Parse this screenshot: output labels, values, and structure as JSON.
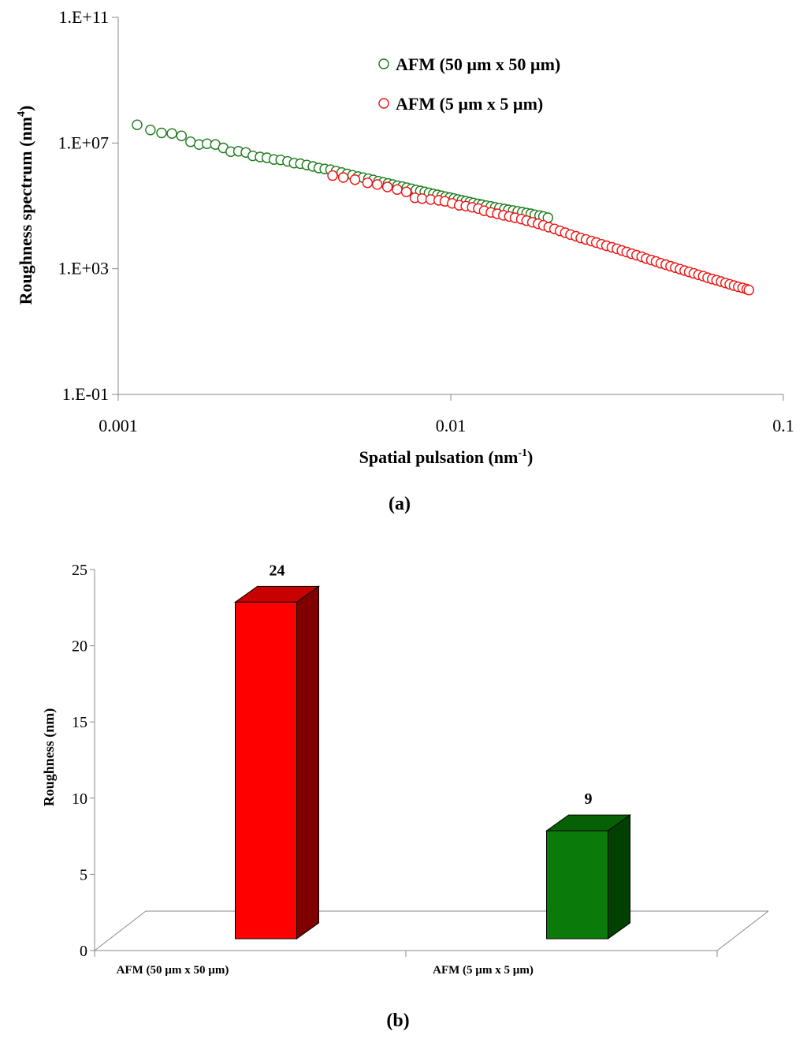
{
  "chart_data": [
    {
      "type": "scatter",
      "panel_label": "(a)",
      "xlabel": "Spatial pulsation (nm",
      "xlabel_sup": "-1",
      "xlabel_tail": ")",
      "ylabel": "Roughness spectrum (nm",
      "ylabel_sup": "4",
      "ylabel_tail": ")",
      "x_scale": "log",
      "y_scale": "log",
      "xlim": [
        0.001,
        0.1
      ],
      "ylim": [
        0.1,
        100000000000
      ],
      "x_ticks": [
        {
          "value": 0.001,
          "label": "0.001"
        },
        {
          "value": 0.01,
          "label": "0.01"
        },
        {
          "value": 0.1,
          "label": "0.1"
        }
      ],
      "y_ticks": [
        {
          "value": 0.1,
          "label": "1.E-01"
        },
        {
          "value": 1000,
          "label": "1.E+03"
        },
        {
          "value": 10000000,
          "label": "1.E+07"
        },
        {
          "value": 100000000000,
          "label": "1.E+11"
        }
      ],
      "grid": false,
      "legend_position": "top-right",
      "series": [
        {
          "name": "AFM (50 µm x 50 µm)",
          "color": "#1a7a1a",
          "marker": "open-circle",
          "x": [
            0.00114,
            0.00125,
            0.00135,
            0.00145,
            0.00155,
            0.00165,
            0.00175,
            0.00185,
            0.00196,
            0.00207,
            0.00218,
            0.0023,
            0.00242,
            0.00254,
            0.00267,
            0.0028,
            0.00294,
            0.00308,
            0.00323,
            0.00338,
            0.00353,
            0.00369,
            0.00385,
            0.00401,
            0.00418,
            0.00435,
            0.00452,
            0.0047,
            0.00488,
            0.00507,
            0.00526,
            0.00545,
            0.00565,
            0.00585,
            0.00606,
            0.00627,
            0.00648,
            0.0067,
            0.00692,
            0.00715,
            0.00738,
            0.00762,
            0.00786,
            0.0081,
            0.00835,
            0.0086,
            0.00886,
            0.00912,
            0.00939,
            0.00966,
            0.00994,
            0.01022,
            0.01051,
            0.0108,
            0.0111,
            0.0114,
            0.0117,
            0.0121,
            0.0124,
            0.0128,
            0.0132,
            0.0136,
            0.014,
            0.0145,
            0.0149,
            0.0154,
            0.0159,
            0.0164,
            0.0169,
            0.0174,
            0.0179,
            0.0185,
            0.019,
            0.0196
          ],
          "y": [
            38000000,
            26000000,
            21000000,
            20000000,
            17000000,
            11000000,
            9000000,
            9500000,
            9000000,
            7000000,
            5300000,
            5500000,
            5000000,
            3900000,
            3600000,
            3400000,
            3000000,
            2900000,
            2600000,
            2300000,
            2200000,
            2000000,
            1800000,
            1600000,
            1500000,
            1420000,
            1280000,
            1150000,
            1040000,
            940000,
            860000,
            790000,
            730000,
            670000,
            610000,
            560000,
            520000,
            480000,
            440000,
            410000,
            380000,
            350000,
            320000,
            300000,
            280000,
            260000,
            240000,
            225000,
            210000,
            196000,
            183000,
            171000,
            160000,
            150000,
            141000,
            132000,
            124000,
            116000,
            109000,
            102000,
            96000,
            90000,
            85000,
            80000,
            75000,
            71000,
            67000,
            63000,
            59000,
            56000,
            52000,
            49000,
            46000,
            42000
          ]
        },
        {
          "name": "AFM (5 µm x 5 µm)",
          "color": "#ee1111",
          "marker": "open-circle",
          "x": [
            0.00441,
            0.00475,
            0.00515,
            0.00562,
            0.00601,
            0.00645,
            0.0069,
            0.00735,
            0.0078,
            0.0082,
            0.0087,
            0.0092,
            0.0096,
            0.0101,
            0.0106,
            0.0111,
            0.0116,
            0.0121,
            0.0126,
            0.0132,
            0.0138,
            0.0144,
            0.015,
            0.0156,
            0.0163,
            0.0169,
            0.0176,
            0.0183,
            0.019,
            0.0197,
            0.0205,
            0.0213,
            0.0221,
            0.0229,
            0.0238,
            0.0246,
            0.0255,
            0.0265,
            0.0274,
            0.0284,
            0.0294,
            0.0305,
            0.0316,
            0.0327,
            0.0338,
            0.035,
            0.0362,
            0.0375,
            0.0387,
            0.0401,
            0.0414,
            0.0428,
            0.0443,
            0.0458,
            0.0473,
            0.0489,
            0.0505,
            0.0521,
            0.0538,
            0.0556,
            0.0574,
            0.0592,
            0.0611,
            0.063,
            0.065,
            0.067,
            0.069,
            0.0711,
            0.0732,
            0.0754,
            0.0776,
            0.0788
          ],
          "y": [
            920000,
            800000,
            680000,
            540000,
            480000,
            400000,
            330000,
            280000,
            180000,
            170000,
            160000,
            150000,
            140000,
            120000,
            105000,
            98000,
            90000,
            82000,
            70000,
            62000,
            56000,
            50000,
            46000,
            42000,
            38000,
            34000,
            30000,
            27000,
            24000,
            21000,
            18500,
            16000,
            14000,
            12200,
            10800,
            9500,
            8500,
            7600,
            6800,
            6000,
            5400,
            4800,
            4300,
            3800,
            3400,
            3000,
            2700,
            2400,
            2100,
            1900,
            1700,
            1500,
            1350,
            1200,
            1080,
            970,
            870,
            790,
            710,
            640,
            580,
            520,
            470,
            430,
            390,
            350,
            320,
            290,
            265,
            245,
            225,
            210
          ]
        }
      ]
    },
    {
      "type": "bar",
      "style": "3d",
      "panel_label": "(b)",
      "ylabel": "Roughness (nm)",
      "xlabel": "",
      "categories": [
        "AFM (50 µm x 50 µm)",
        "AFM (5 µm x 5 µm)"
      ],
      "values": [
        24,
        9
      ],
      "data_labels": [
        "24",
        "9"
      ],
      "colors": [
        {
          "front": "#ff0000",
          "top": "#c80000",
          "side": "#800000"
        },
        {
          "front": "#0a7a0a",
          "top": "#066006",
          "side": "#004000"
        }
      ],
      "ylim": [
        0,
        25
      ],
      "y_ticks": [
        {
          "value": 0,
          "label": "0"
        },
        {
          "value": 5,
          "label": "5"
        },
        {
          "value": 10,
          "label": "10"
        },
        {
          "value": 15,
          "label": "15"
        },
        {
          "value": 20,
          "label": "20"
        },
        {
          "value": 25,
          "label": "25"
        }
      ],
      "grid": false
    }
  ]
}
